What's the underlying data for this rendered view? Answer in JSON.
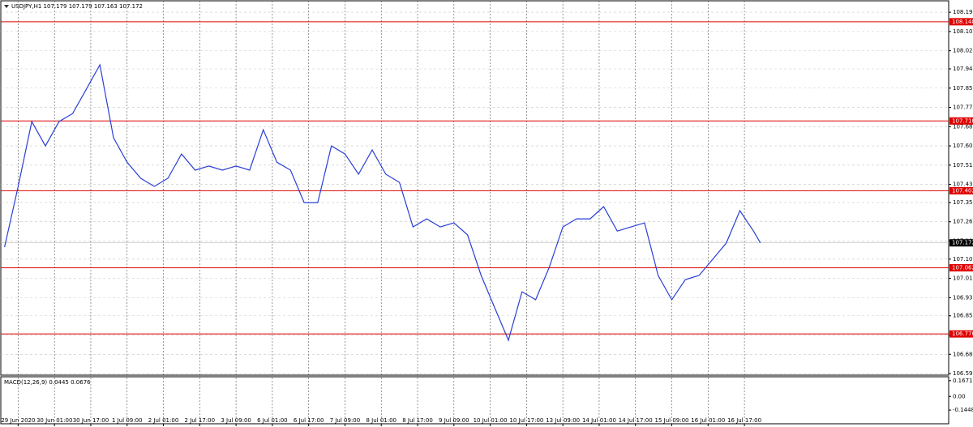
{
  "chart_data": {
    "type": "line",
    "title": "USDJPY,H1  107.179 107.179 107.163 107.172",
    "x": [
      0,
      6,
      12,
      18,
      24,
      30,
      36,
      42,
      48,
      54,
      60,
      66,
      72,
      78,
      84,
      90,
      96,
      102,
      108,
      114,
      120,
      126,
      132,
      138,
      144,
      150,
      156,
      162,
      168,
      174,
      180,
      186,
      192,
      198,
      204,
      210,
      216,
      222,
      228,
      234,
      240,
      246,
      252,
      258,
      264,
      270,
      276,
      282,
      288,
      294,
      300,
      306,
      312,
      318,
      324,
      330,
      333
    ],
    "series": [
      {
        "color": "#2a3fd6",
        "values": [
          107.153,
          107.421,
          107.707,
          107.6,
          107.707,
          107.743,
          107.85,
          107.958,
          107.636,
          107.528,
          107.457,
          107.421,
          107.457,
          107.564,
          107.493,
          107.511,
          107.493,
          107.511,
          107.493,
          107.671,
          107.528,
          107.493,
          107.35,
          107.35,
          107.6,
          107.564,
          107.475,
          107.582,
          107.475,
          107.439,
          107.242,
          107.278,
          107.242,
          107.26,
          107.207,
          107.028,
          106.885,
          106.742,
          106.956,
          106.921,
          107.064,
          107.242,
          107.278,
          107.278,
          107.332,
          107.224,
          107.242,
          107.26,
          107.028,
          106.921,
          107.01,
          107.028,
          107.099,
          107.171,
          107.314,
          107.224,
          107.172
        ]
      }
    ],
    "xlim": [
      -2,
      416
    ],
    "ylim": [
      106.588,
      108.244
    ],
    "xticks": [
      {
        "value": 6,
        "label": "29 Jun 2020"
      },
      {
        "value": 22,
        "label": "30 Jun 01:00"
      },
      {
        "value": 38,
        "label": "30 Jun 17:00"
      },
      {
        "value": 54,
        "label": "1 Jul 09:00"
      },
      {
        "value": 70,
        "label": "2 Jul 01:00"
      },
      {
        "value": 86,
        "label": "2 Jul 17:00"
      },
      {
        "value": 102,
        "label": "3 Jul 09:00"
      },
      {
        "value": 118,
        "label": "6 Jul 01:00"
      },
      {
        "value": 134,
        "label": "6 Jul 17:00"
      },
      {
        "value": 150,
        "label": "7 Jul 09:00"
      },
      {
        "value": 166,
        "label": "8 Jul 01:00"
      },
      {
        "value": 182,
        "label": "8 Jul 17:00"
      },
      {
        "value": 198,
        "label": "9 Jul 09:00"
      },
      {
        "value": 214,
        "label": "10 Jul 01:00"
      },
      {
        "value": 230,
        "label": "10 Jul 17:00"
      },
      {
        "value": 246,
        "label": "13 Jul 09:00"
      },
      {
        "value": 262,
        "label": "14 Jul 01:00"
      },
      {
        "value": 278,
        "label": "14 Jul 17:00"
      },
      {
        "value": 294,
        "label": "15 Jul 09:00"
      },
      {
        "value": 310,
        "label": "16 Jul 01:00"
      },
      {
        "value": 326,
        "label": "16 Jul 17:00"
      }
    ],
    "yticks": [
      {
        "value": 108.19,
        "label": "108.190"
      },
      108.105,
      {
        "value": 108.02,
        "label": "108.020"
      },
      {
        "value": 107.94,
        "label": "107.940"
      },
      107.855,
      {
        "value": 107.77,
        "label": "107.770"
      },
      107.685,
      {
        "value": 107.6,
        "label": "107.600"
      },
      107.515,
      {
        "value": 107.43,
        "label": "107.430"
      },
      {
        "value": 107.35,
        "label": "107.350"
      },
      107.265,
      {
        "value": 107.18,
        "label": "107.180"
      },
      {
        "value": 107.1,
        "label": "107.100"
      },
      107.015,
      {
        "value": 106.93,
        "label": "106.930"
      },
      {
        "value": 106.85,
        "label": "106.850"
      },
      106.765,
      {
        "value": 106.68,
        "label": "106.680"
      },
      106.595
    ],
    "levels": [
      108.148,
      {
        "value": 107.71,
        "label": "107.710"
      },
      107.402,
      107.062,
      {
        "value": 106.77,
        "label": "106.770"
      }
    ],
    "current_price": 107.172,
    "grid": true,
    "indicator": {
      "title": "MACD(12,26,9) 0.0445 0.0676",
      "ylim": [
        -0.29,
        0.2
      ],
      "yticks": [
        0.1671,
        {
          "value": 0,
          "label": "0.00"
        },
        -0.1448
      ]
    }
  }
}
